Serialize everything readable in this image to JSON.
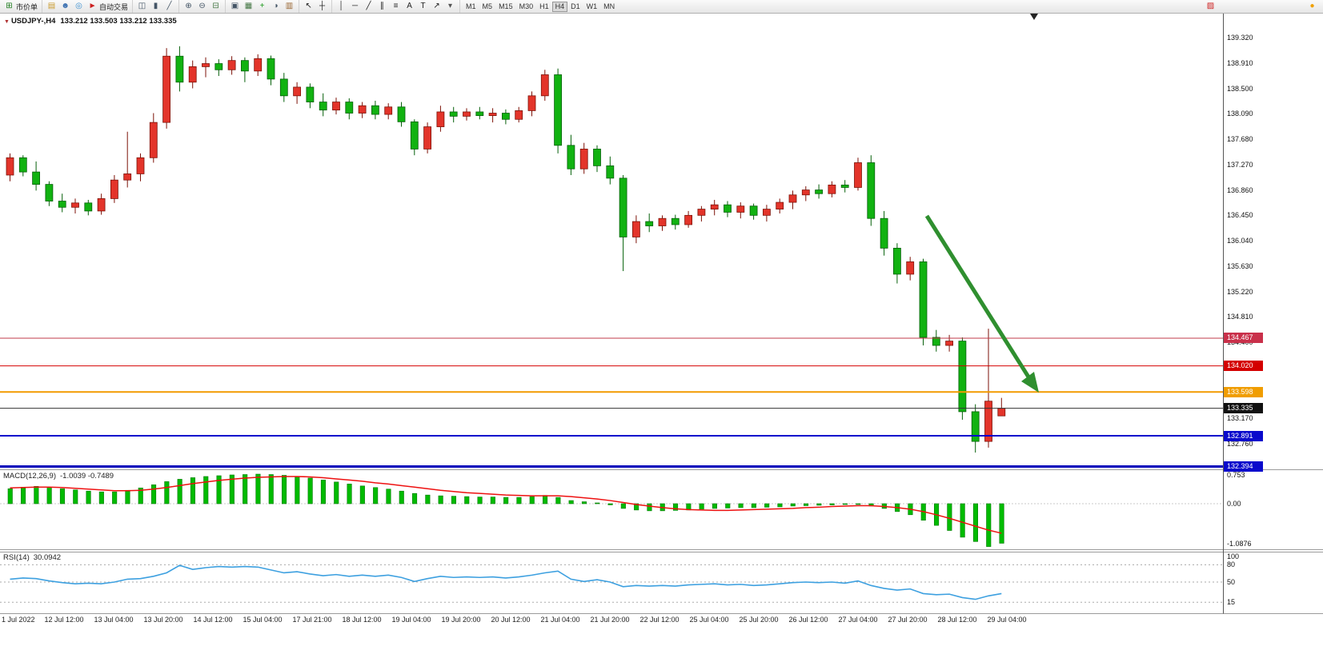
{
  "toolbar": {
    "groups": [
      {
        "name": "order",
        "items": [
          {
            "name": "new-order-button",
            "glyph": "⊞",
            "color": "#1a7a1a",
            "label": "市价单"
          }
        ]
      },
      {
        "name": "apps",
        "items": [
          {
            "name": "chart-window-icon",
            "glyph": "▤",
            "color": "#c99a2c"
          },
          {
            "name": "profile-icon",
            "glyph": "☻",
            "color": "#3a6fb0"
          },
          {
            "name": "community-icon",
            "glyph": "◎",
            "color": "#3a8fd0"
          },
          {
            "name": "autotrading-button",
            "glyph": "►",
            "color": "#cc2020",
            "label": "自动交易"
          }
        ]
      },
      {
        "name": "chart-types",
        "items": [
          {
            "name": "bar-chart-icon",
            "glyph": "◫",
            "color": "#445566"
          },
          {
            "name": "candlestick-chart-icon",
            "glyph": "▮",
            "color": "#445566"
          },
          {
            "name": "line-chart-icon",
            "glyph": "╱",
            "color": "#445566"
          }
        ]
      },
      {
        "name": "zoom",
        "items": [
          {
            "name": "zoom-in-icon",
            "glyph": "⊕",
            "color": "#445566"
          },
          {
            "name": "zoom-out-icon",
            "glyph": "⊖",
            "color": "#445566"
          },
          {
            "name": "grid-icon",
            "glyph": "⊟",
            "color": "#447744"
          }
        ]
      },
      {
        "name": "windows",
        "items": [
          {
            "name": "tile-windows-icon",
            "glyph": "▣",
            "color": "#445566"
          },
          {
            "name": "arrange-windows-icon",
            "glyph": "▦",
            "color": "#447744"
          },
          {
            "name": "indicators-icon",
            "glyph": "+",
            "color": "#1a9a1a"
          },
          {
            "name": "periods-icon",
            "glyph": "◑",
            "color": "#445566"
          },
          {
            "name": "templates-icon",
            "glyph": "▥",
            "color": "#996633"
          }
        ]
      },
      {
        "name": "cursor",
        "items": [
          {
            "name": "cursor-icon",
            "glyph": "↖",
            "color": "#222222"
          },
          {
            "name": "crosshair-icon",
            "glyph": "┼",
            "color": "#222222"
          }
        ]
      },
      {
        "name": "draw",
        "items": [
          {
            "name": "vertical-line-icon",
            "glyph": "│",
            "color": "#222222"
          },
          {
            "name": "horizontal-line-icon",
            "glyph": "─",
            "color": "#222222"
          },
          {
            "name": "trendline-icon",
            "glyph": "╱",
            "color": "#222222"
          },
          {
            "name": "channel-icon",
            "glyph": "∥",
            "color": "#222222"
          },
          {
            "name": "fibonacci-icon",
            "glyph": "≡",
            "color": "#222222"
          },
          {
            "name": "text-icon",
            "glyph": "A",
            "color": "#222222"
          },
          {
            "name": "label-icon",
            "glyph": "T",
            "color": "#222222"
          },
          {
            "name": "arrows-tool-icon",
            "glyph": "↗",
            "color": "#222222"
          },
          {
            "name": "dropdown-icon",
            "glyph": "▾",
            "color": "#555555"
          }
        ]
      },
      {
        "name": "timeframes",
        "items": [
          {
            "name": "tf-m1-button",
            "label": "M1"
          },
          {
            "name": "tf-m5-button",
            "label": "M5"
          },
          {
            "name": "tf-m15-button",
            "label": "M15"
          },
          {
            "name": "tf-m30-button",
            "label": "M30"
          },
          {
            "name": "tf-h1-button",
            "label": "H1"
          },
          {
            "name": "tf-h4-button",
            "label": "H4",
            "active": true
          },
          {
            "name": "tf-d1-button",
            "label": "D1"
          },
          {
            "name": "tf-w1-button",
            "label": "W1"
          },
          {
            "name": "tf-mn-button",
            "label": "MN"
          }
        ]
      },
      {
        "name": "right",
        "items": [
          {
            "name": "alert-icon",
            "glyph": "▨",
            "color": "#cc2020"
          },
          {
            "name": "status-badge-icon",
            "glyph": "●",
            "color": "#f0a000",
            "gap": 110
          }
        ]
      }
    ]
  },
  "chart": {
    "marker": "▼",
    "title": "USDJPY-,H4",
    "ohlc": "133.212 133.503 133.212 133.335"
  },
  "macd_panel": {
    "label": "MACD(12,26,9)",
    "values_text": "-1.0039 -0.7489"
  },
  "rsi_panel": {
    "label": "RSI(14)",
    "value_text": "30.0942"
  },
  "chart_data": [
    {
      "type": "candlestick",
      "title": "USDJPY-,H4",
      "up_color": "#e3342a",
      "down_color": "#11b211",
      "ylim": [
        132.35,
        139.72
      ],
      "y_tick_labels": [
        "139.320",
        "138.910",
        "138.500",
        "138.090",
        "137.680",
        "137.270",
        "136.860",
        "136.450",
        "136.040",
        "135.630",
        "135.220",
        "134.810",
        "134.400",
        "133.990",
        "133.580",
        "133.170",
        "132.760",
        "132.350"
      ],
      "x_tick_labels": [
        "1 Jul 2022",
        "12 Jul 12:00",
        "13 Jul 04:00",
        "13 Jul 20:00",
        "14 Jul 12:00",
        "15 Jul 04:00",
        "17 Jul 21:00",
        "18 Jul 12:00",
        "19 Jul 04:00",
        "19 Jul 20:00",
        "20 Jul 12:00",
        "21 Jul 04:00",
        "21 Jul 20:00",
        "22 Jul 12:00",
        "25 Jul 04:00",
        "25 Jul 20:00",
        "26 Jul 12:00",
        "27 Jul 04:00",
        "27 Jul 20:00",
        "28 Jul 12:00",
        "29 Jul 04:00"
      ],
      "hlines": [
        {
          "name": "resistance-line-1",
          "label": "134.467",
          "price": 134.467,
          "color": "#c23b4b",
          "width": 1,
          "badge_bg": "#c9304a"
        },
        {
          "name": "resistance-line-2",
          "label": "134.020",
          "price": 134.02,
          "color": "#d40000",
          "width": 1,
          "badge_bg": "#d40000"
        },
        {
          "name": "pivot-line",
          "label": "133.598",
          "price": 133.598,
          "color": "#f29b00",
          "width": 2,
          "badge_bg": "#f09d00"
        },
        {
          "name": "current-price-line",
          "label": "133.335",
          "price": 133.335,
          "color": "#333333",
          "width": 1,
          "badge_bg": "#111111"
        },
        {
          "name": "support-line-1",
          "label": "132.891",
          "price": 132.891,
          "color": "#0000cc",
          "width": 2,
          "badge_bg": "#0a0acc"
        },
        {
          "name": "support-line-2",
          "label": "132.394",
          "price": 132.394,
          "color": "#0000bb",
          "width": 3,
          "badge_bg": "#0a0acc"
        }
      ],
      "annotations": [
        {
          "type": "arrow",
          "direction": "down-right",
          "color": "#2f8f2f"
        }
      ],
      "candles": [
        [
          137.1,
          137.45,
          137.0,
          137.38
        ],
        [
          137.38,
          137.42,
          137.08,
          137.15
        ],
        [
          137.15,
          137.32,
          136.85,
          136.95
        ],
        [
          136.95,
          137.0,
          136.6,
          136.68
        ],
        [
          136.68,
          136.8,
          136.5,
          136.58
        ],
        [
          136.58,
          136.72,
          136.48,
          136.65
        ],
        [
          136.65,
          136.7,
          136.45,
          136.52
        ],
        [
          136.52,
          136.8,
          136.46,
          136.72
        ],
        [
          136.72,
          137.1,
          136.65,
          137.02
        ],
        [
          137.02,
          137.8,
          136.9,
          137.12
        ],
        [
          137.12,
          137.45,
          137.0,
          137.38
        ],
        [
          137.38,
          138.1,
          137.3,
          137.95
        ],
        [
          137.95,
          139.15,
          137.85,
          139.02
        ],
        [
          139.02,
          139.18,
          138.45,
          138.6
        ],
        [
          138.6,
          138.95,
          138.5,
          138.85
        ],
        [
          138.85,
          139.0,
          138.68,
          138.9
        ],
        [
          138.9,
          138.97,
          138.7,
          138.8
        ],
        [
          138.8,
          139.02,
          138.72,
          138.95
        ],
        [
          138.95,
          139.0,
          138.6,
          138.78
        ],
        [
          138.78,
          139.05,
          138.7,
          138.98
        ],
        [
          138.98,
          139.03,
          138.55,
          138.65
        ],
        [
          138.65,
          138.75,
          138.28,
          138.38
        ],
        [
          138.38,
          138.6,
          138.25,
          138.52
        ],
        [
          138.52,
          138.58,
          138.18,
          138.28
        ],
        [
          138.28,
          138.42,
          138.05,
          138.15
        ],
        [
          138.15,
          138.35,
          138.08,
          138.28
        ],
        [
          138.28,
          138.34,
          138.0,
          138.1
        ],
        [
          138.1,
          138.28,
          138.02,
          138.22
        ],
        [
          138.22,
          138.3,
          138.0,
          138.08
        ],
        [
          138.08,
          138.26,
          138.0,
          138.2
        ],
        [
          138.2,
          138.28,
          137.88,
          137.96
        ],
        [
          137.96,
          138.0,
          137.42,
          137.52
        ],
        [
          137.52,
          137.95,
          137.45,
          137.88
        ],
        [
          137.88,
          138.22,
          137.8,
          138.12
        ],
        [
          138.12,
          138.2,
          137.95,
          138.05
        ],
        [
          138.05,
          138.18,
          137.98,
          138.12
        ],
        [
          138.12,
          138.2,
          138.0,
          138.06
        ],
        [
          138.06,
          138.18,
          137.95,
          138.1
        ],
        [
          138.1,
          138.16,
          137.92,
          138.0
        ],
        [
          138.0,
          138.2,
          137.95,
          138.14
        ],
        [
          138.14,
          138.45,
          138.05,
          138.38
        ],
        [
          138.38,
          138.8,
          138.3,
          138.72
        ],
        [
          138.72,
          138.82,
          137.45,
          137.58
        ],
        [
          137.58,
          137.75,
          137.1,
          137.2
        ],
        [
          137.2,
          137.62,
          137.12,
          137.52
        ],
        [
          137.52,
          137.58,
          137.15,
          137.25
        ],
        [
          137.25,
          137.4,
          136.95,
          137.05
        ],
        [
          137.05,
          137.1,
          135.55,
          136.1
        ],
        [
          136.1,
          136.45,
          136.0,
          136.35
        ],
        [
          136.35,
          136.48,
          136.18,
          136.28
        ],
        [
          136.28,
          136.45,
          136.2,
          136.4
        ],
        [
          136.4,
          136.46,
          136.22,
          136.3
        ],
        [
          136.3,
          136.52,
          136.25,
          136.45
        ],
        [
          136.45,
          136.6,
          136.35,
          136.55
        ],
        [
          136.55,
          136.7,
          136.45,
          136.62
        ],
        [
          136.62,
          136.68,
          136.42,
          136.5
        ],
        [
          136.5,
          136.66,
          136.4,
          136.6
        ],
        [
          136.6,
          136.64,
          136.38,
          136.45
        ],
        [
          136.45,
          136.62,
          136.35,
          136.55
        ],
        [
          136.55,
          136.72,
          136.48,
          136.66
        ],
        [
          136.66,
          136.85,
          136.55,
          136.78
        ],
        [
          136.78,
          136.92,
          136.68,
          136.86
        ],
        [
          136.86,
          136.95,
          136.72,
          136.8
        ],
        [
          136.8,
          137.0,
          136.74,
          136.94
        ],
        [
          136.94,
          137.02,
          136.82,
          136.9
        ],
        [
          136.9,
          137.38,
          136.85,
          137.3
        ],
        [
          137.3,
          137.42,
          136.28,
          136.4
        ],
        [
          136.4,
          136.52,
          135.8,
          135.92
        ],
        [
          135.92,
          136.0,
          135.35,
          135.5
        ],
        [
          135.5,
          135.78,
          135.4,
          135.7
        ],
        [
          135.7,
          135.75,
          134.35,
          134.48
        ],
        [
          134.48,
          134.6,
          134.25,
          134.35
        ],
        [
          134.35,
          134.52,
          134.25,
          134.42
        ],
        [
          134.42,
          134.48,
          133.15,
          133.28
        ],
        [
          133.28,
          133.4,
          132.62,
          132.8
        ],
        [
          132.8,
          134.62,
          132.7,
          133.45
        ],
        [
          133.212,
          133.503,
          133.212,
          133.335
        ]
      ]
    },
    {
      "type": "bar",
      "name": "MACD(12,26,9)",
      "current_text": "-1.0039 -0.7489",
      "ylim": [
        -1.0876,
        0.753
      ],
      "scale_labels": [
        "0.753",
        "0.00",
        "-1.0876"
      ],
      "bar_color": "#00bb00",
      "signal_color": "#ee1111",
      "values": [
        0.38,
        0.42,
        0.44,
        0.42,
        0.38,
        0.35,
        0.32,
        0.3,
        0.3,
        0.34,
        0.4,
        0.48,
        0.56,
        0.62,
        0.66,
        0.69,
        0.71,
        0.73,
        0.74,
        0.75,
        0.74,
        0.72,
        0.69,
        0.65,
        0.6,
        0.55,
        0.5,
        0.45,
        0.41,
        0.37,
        0.32,
        0.26,
        0.22,
        0.2,
        0.19,
        0.18,
        0.17,
        0.17,
        0.16,
        0.16,
        0.18,
        0.21,
        0.16,
        0.08,
        0.05,
        0.02,
        -0.03,
        -0.12,
        -0.16,
        -0.18,
        -0.18,
        -0.17,
        -0.16,
        -0.14,
        -0.12,
        -0.11,
        -0.1,
        -0.1,
        -0.09,
        -0.08,
        -0.06,
        -0.05,
        -0.04,
        -0.03,
        -0.02,
        -0.02,
        -0.06,
        -0.12,
        -0.2,
        -0.28,
        -0.42,
        -0.55,
        -0.68,
        -0.85,
        -0.96,
        -1.0876,
        -1.0039
      ],
      "signal": [
        0.4,
        0.41,
        0.42,
        0.42,
        0.41,
        0.39,
        0.37,
        0.35,
        0.33,
        0.33,
        0.34,
        0.37,
        0.41,
        0.46,
        0.51,
        0.55,
        0.59,
        0.62,
        0.65,
        0.67,
        0.68,
        0.69,
        0.69,
        0.68,
        0.66,
        0.63,
        0.6,
        0.57,
        0.53,
        0.5,
        0.46,
        0.42,
        0.38,
        0.34,
        0.31,
        0.28,
        0.26,
        0.24,
        0.22,
        0.21,
        0.2,
        0.2,
        0.2,
        0.18,
        0.15,
        0.12,
        0.08,
        0.03,
        -0.02,
        -0.06,
        -0.1,
        -0.13,
        -0.15,
        -0.16,
        -0.17,
        -0.17,
        -0.16,
        -0.15,
        -0.14,
        -0.13,
        -0.12,
        -0.1,
        -0.09,
        -0.07,
        -0.06,
        -0.05,
        -0.05,
        -0.07,
        -0.1,
        -0.14,
        -0.2,
        -0.28,
        -0.37,
        -0.47,
        -0.57,
        -0.67,
        -0.7489
      ]
    },
    {
      "type": "line",
      "name": "RSI(14)",
      "current": 30.0942,
      "ylim": [
        0,
        100
      ],
      "levels": [
        80,
        50,
        15
      ],
      "scale_labels": [
        "100",
        "80",
        "50",
        "15"
      ],
      "line_color": "#3da0e0",
      "values": [
        55,
        57,
        56,
        52,
        49,
        47,
        48,
        47,
        50,
        55,
        56,
        60,
        66,
        79,
        72,
        75,
        77,
        76,
        77,
        76,
        71,
        66,
        68,
        64,
        61,
        63,
        60,
        62,
        60,
        62,
        58,
        51,
        56,
        60,
        58,
        59,
        58,
        59,
        57,
        59,
        62,
        66,
        69,
        55,
        51,
        54,
        50,
        42,
        44,
        43,
        44,
        43,
        45,
        46,
        47,
        45,
        46,
        44,
        45,
        47,
        49,
        50,
        49,
        50,
        48,
        52,
        44,
        39,
        36,
        38,
        30,
        28,
        29,
        23,
        20,
        26,
        30
      ]
    }
  ]
}
